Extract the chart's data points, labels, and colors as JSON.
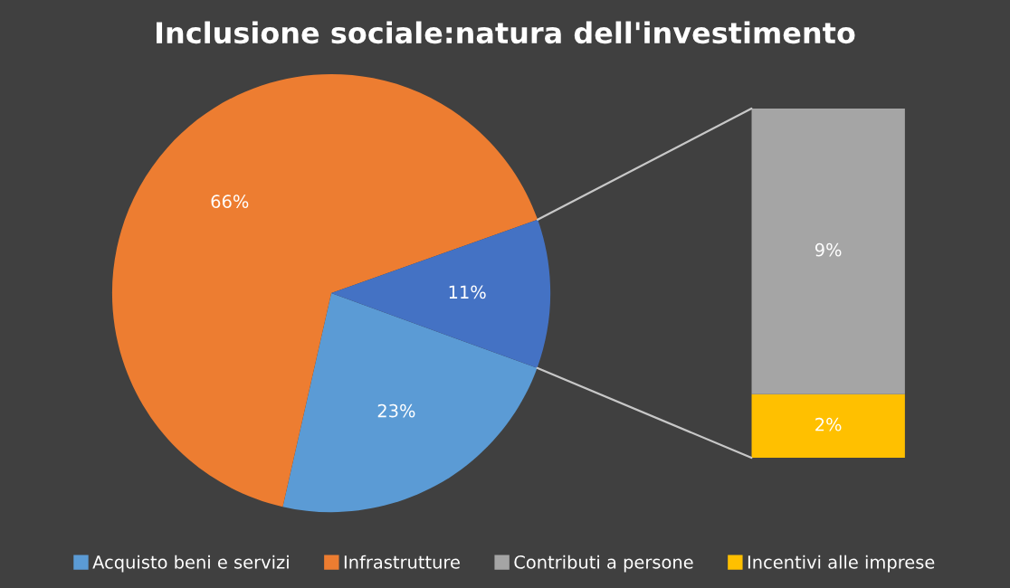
{
  "chart_data": [
    {
      "type": "pie",
      "title": "Inclusione sociale:natura dell'investimento",
      "categories": [
        "Acquisto beni e servizi",
        "Infrastrutture",
        null
      ],
      "values": [
        23,
        66,
        11
      ],
      "value_labels": [
        "23%",
        "66%",
        "11%"
      ],
      "colors": [
        "#5b9bd5",
        "#ed7d31",
        "#4472c4"
      ],
      "legend": "bottom"
    },
    {
      "type": "bar",
      "stacked": true,
      "categories": [
        null
      ],
      "series": [
        {
          "name": "Incentivi alle imprese",
          "color": "#ffc000",
          "values": [
            2
          ],
          "value_labels": [
            "2%"
          ]
        },
        {
          "name": "Contributi a persone",
          "color": "#a5a5a5",
          "values": [
            9
          ],
          "value_labels": [
            "9%"
          ]
        }
      ],
      "legend": "bottom"
    }
  ]
}
